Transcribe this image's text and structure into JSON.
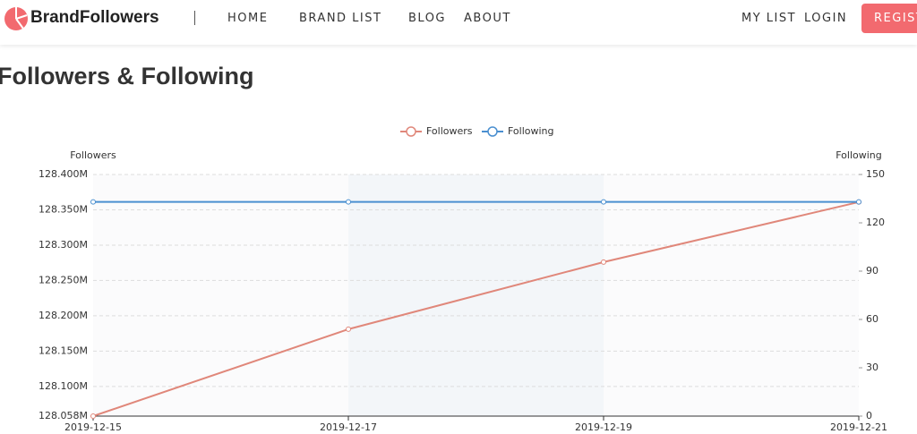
{
  "nav": {
    "logo": "BrandFollowers",
    "links": [
      "HOME",
      "BRAND LIST",
      "BLOG",
      "ABOUT"
    ],
    "right_links": [
      "MY LIST",
      "LOGIN"
    ],
    "button": "REGIST"
  },
  "page_title": "Followers & Following",
  "chart_data": {
    "type": "line",
    "x": [
      "2019-12-15",
      "2019-12-17",
      "2019-12-19",
      "2019-12-21"
    ],
    "y_label": "Followers",
    "y2_label": "Following",
    "series": [
      {
        "name": "Followers",
        "color": "#e0877a",
        "values": [
          128058000,
          128181000,
          128276000,
          128361000
        ]
      },
      {
        "name": "Following",
        "color": "#4a8fd0",
        "axis": "y2",
        "values": [
          133,
          133,
          133,
          133
        ]
      }
    ],
    "ylim": [
      128058000,
      128400000
    ],
    "yticks": [
      {
        "value": 128058000,
        "label": "128.058M"
      },
      {
        "value": 128100000,
        "label": "128.100M"
      },
      {
        "value": 128150000,
        "label": "128.150M"
      },
      {
        "value": 128200000,
        "label": "128.200M"
      },
      {
        "value": 128250000,
        "label": "128.250M"
      },
      {
        "value": 128300000,
        "label": "128.300M"
      },
      {
        "value": 128350000,
        "label": "128.350M"
      },
      {
        "value": 128400000,
        "label": "128.400M"
      }
    ],
    "y2lim": [
      0,
      150
    ],
    "y2ticks": [
      0,
      30,
      60,
      90,
      120,
      150
    ],
    "grid": true,
    "legend": "top"
  }
}
